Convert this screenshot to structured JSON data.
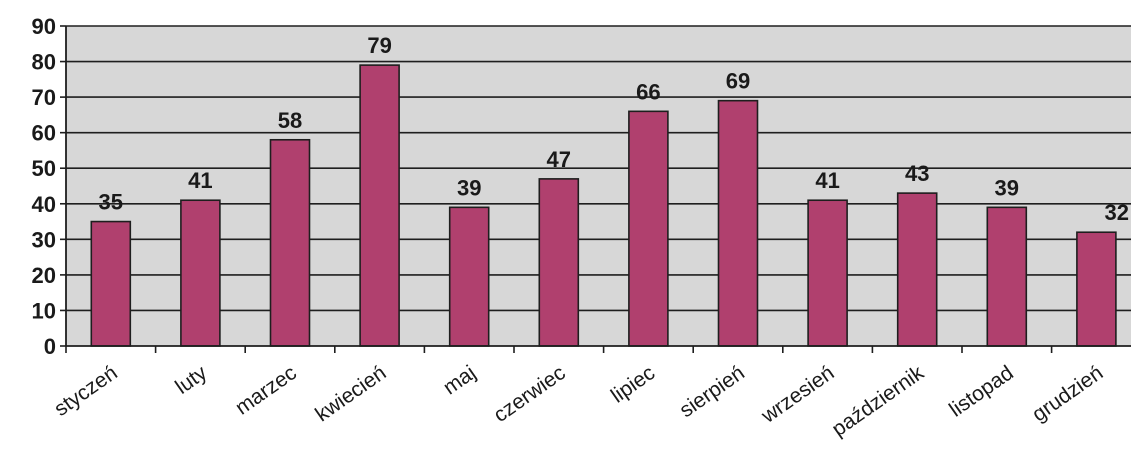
{
  "chart_data": {
    "type": "bar",
    "categories": [
      "styczeń",
      "luty",
      "marzec",
      "kwiecień",
      "maj",
      "czerwiec",
      "lipiec",
      "sierpień",
      "wrzesień",
      "październik",
      "listopad",
      "grudzień"
    ],
    "values": [
      35,
      41,
      58,
      79,
      39,
      47,
      66,
      69,
      41,
      43,
      39,
      32
    ],
    "y_ticks": [
      "0",
      "10",
      "20",
      "30",
      "40",
      "50",
      "60",
      "70",
      "80",
      "90"
    ],
    "ylim": [
      0,
      90
    ],
    "grid": true,
    "legend": "none",
    "colors": {
      "bar": "#b0406e",
      "bar_edge": "#1e1e1e",
      "plot_background": "#d7d7d7",
      "gridline": "#1e1e1e"
    }
  }
}
